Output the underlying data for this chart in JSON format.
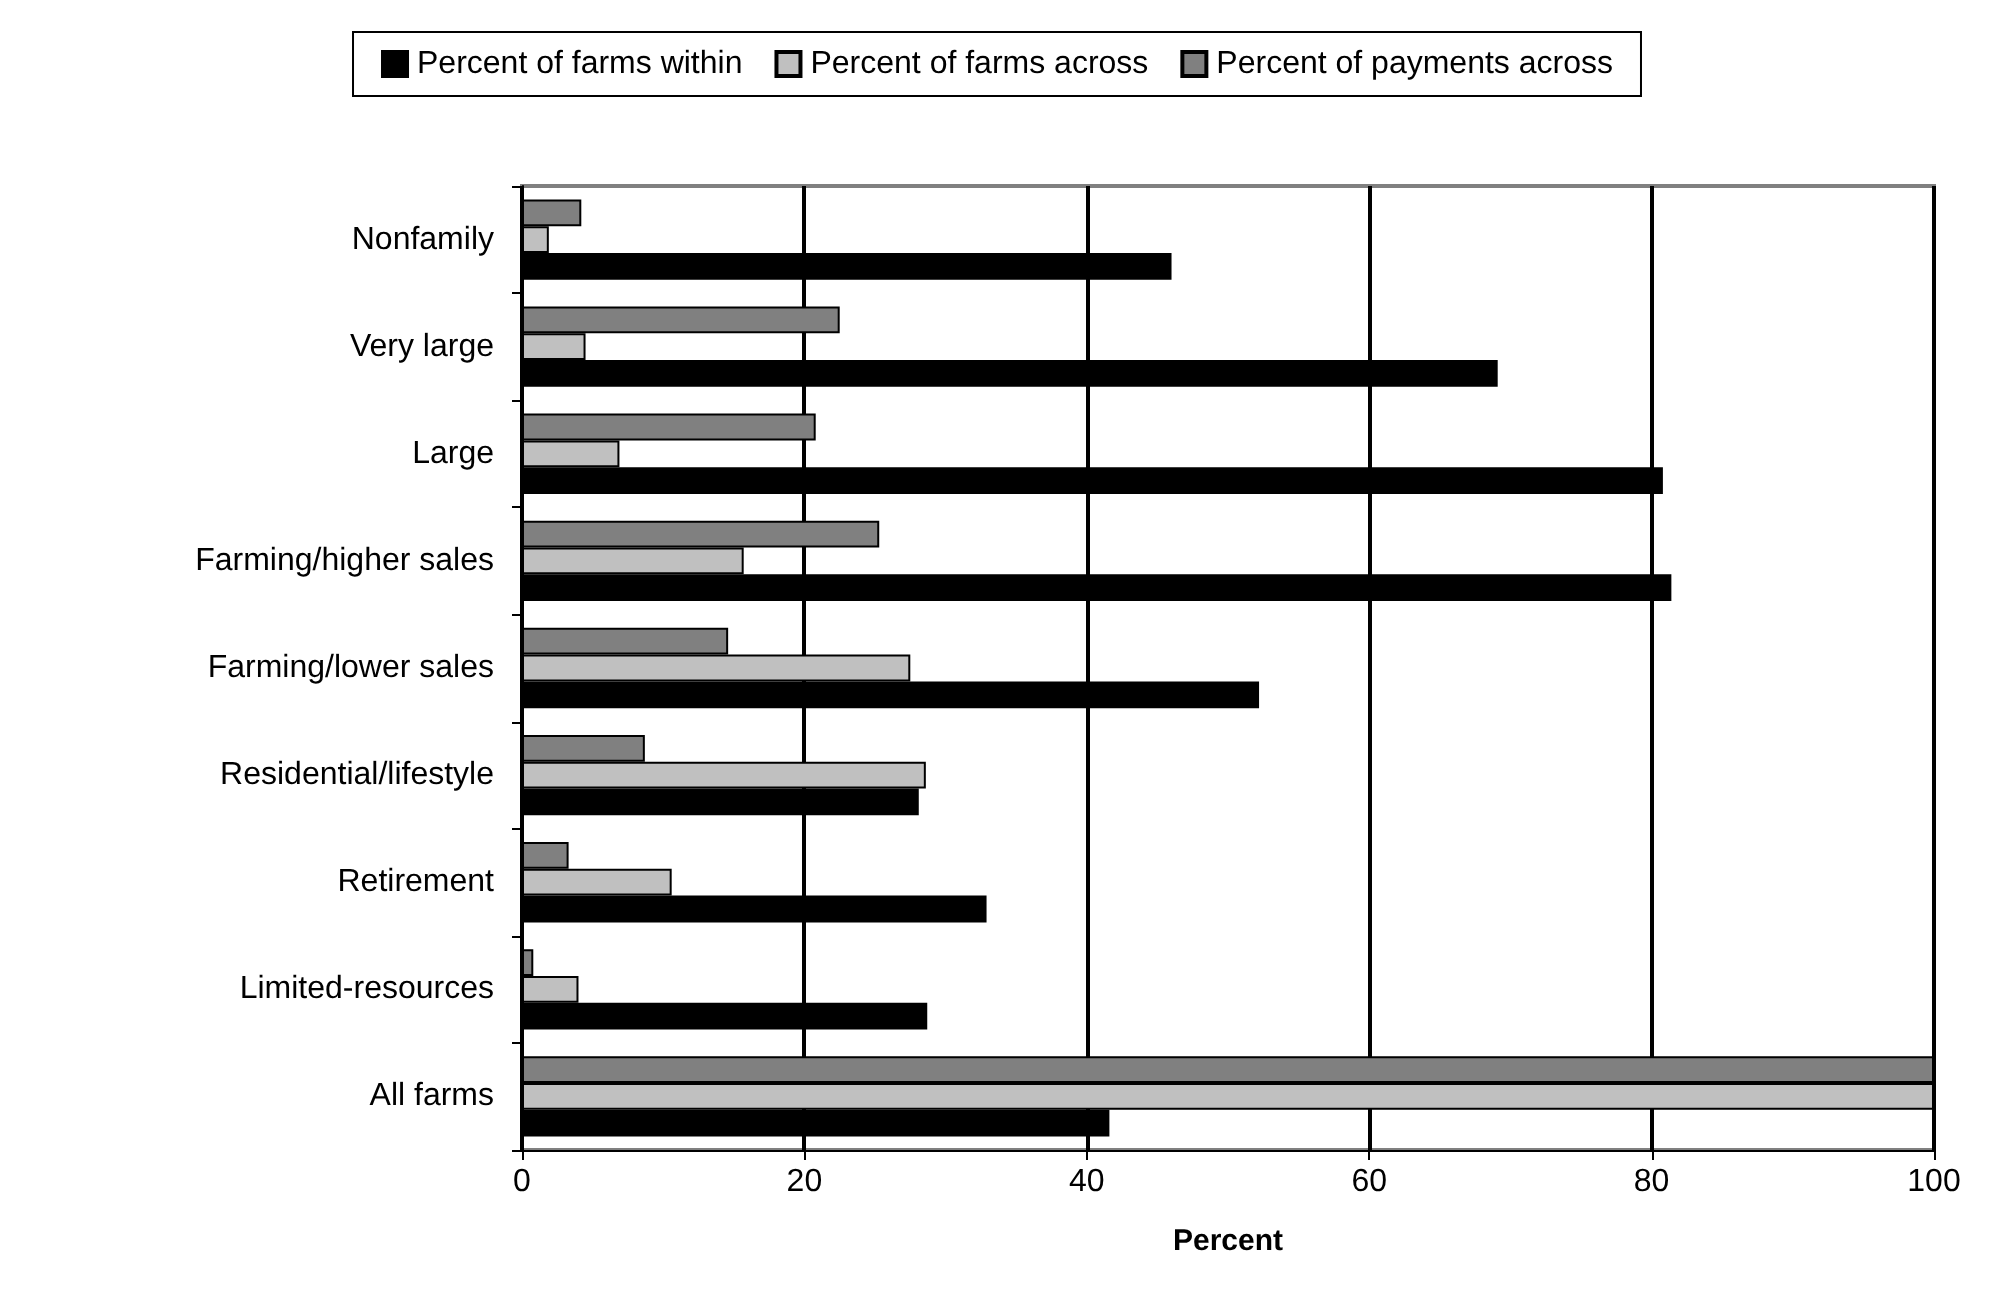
{
  "chart_data": {
    "type": "bar",
    "orientation": "horizontal",
    "xlabel": "Percent",
    "categories": [
      "Nonfamily",
      "Very large",
      "Large",
      "Farming/higher sales",
      "Farming/lower sales",
      "Residential/lifestyle",
      "Retirement",
      "Limited-resources",
      "All farms"
    ],
    "series": [
      {
        "name": "Percent of farms within",
        "color": "#000000",
        "values": [
          46.0,
          69.1,
          80.8,
          81.4,
          52.2,
          28.1,
          32.9,
          28.7,
          41.6
        ]
      },
      {
        "name": "Percent of farms across",
        "color": "#c0c0c0",
        "values": [
          1.9,
          4.5,
          6.9,
          15.7,
          27.5,
          28.6,
          10.6,
          4.0,
          100
        ]
      },
      {
        "name": "Percent of payments across",
        "color": "#808080",
        "values": [
          4.2,
          22.5,
          20.8,
          25.3,
          14.6,
          8.7,
          3.3,
          0.8,
          100
        ]
      }
    ],
    "xlim": [
      0,
      100
    ],
    "xticks": [
      0,
      20,
      40,
      60,
      80,
      100
    ],
    "grid": "x",
    "legend": "top"
  }
}
